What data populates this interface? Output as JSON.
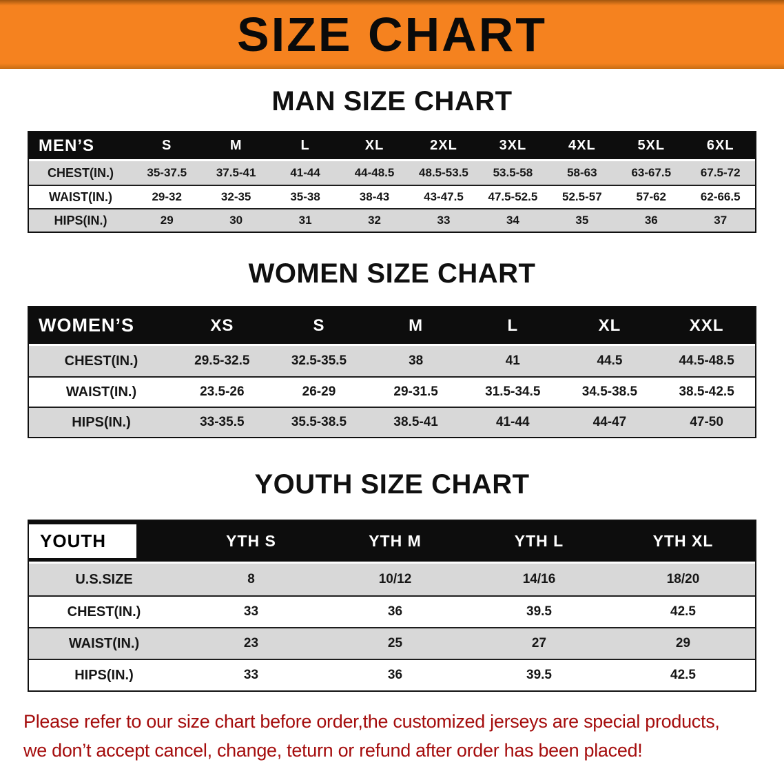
{
  "banner": {
    "title": "SIZE CHART"
  },
  "colors": {
    "banner_bg": "#F5821F",
    "table_header_bg": "#0D0D0D",
    "row_stripe": "#D8D8D8",
    "footer_text": "#A50D0D"
  },
  "sections": [
    {
      "id": "men",
      "heading": "MAN SIZE CHART",
      "table": {
        "header": [
          "MEN’S",
          "S",
          "M",
          "L",
          "XL",
          "2XL",
          "3XL",
          "4XL",
          "5XL",
          "6XL"
        ],
        "rows": [
          [
            "CHEST(IN.)",
            "35-37.5",
            "37.5-41",
            "41-44",
            "44-48.5",
            "48.5-53.5",
            "53.5-58",
            "58-63",
            "63-67.5",
            "67.5-72"
          ],
          [
            "WAIST(IN.)",
            "29-32",
            "32-35",
            "35-38",
            "38-43",
            "43-47.5",
            "47.5-52.5",
            "52.5-57",
            "57-62",
            "62-66.5"
          ],
          [
            "HIPS(IN.)",
            "29",
            "30",
            "31",
            "32",
            "33",
            "34",
            "35",
            "36",
            "37"
          ]
        ]
      }
    },
    {
      "id": "women",
      "heading": "WOMEN SIZE CHART",
      "table": {
        "header": [
          "WOMEN’S",
          "XS",
          "S",
          "M",
          "L",
          "XL",
          "XXL"
        ],
        "rows": [
          [
            "CHEST(IN.)",
            "29.5-32.5",
            "32.5-35.5",
            "38",
            "41",
            "44.5",
            "44.5-48.5"
          ],
          [
            "WAIST(IN.)",
            "23.5-26",
            "26-29",
            "29-31.5",
            "31.5-34.5",
            "34.5-38.5",
            "38.5-42.5"
          ],
          [
            "HIPS(IN.)",
            "33-35.5",
            "35.5-38.5",
            "38.5-41",
            "41-44",
            "44-47",
            "47-50"
          ]
        ]
      }
    },
    {
      "id": "youth",
      "heading": "YOUTH SIZE CHART",
      "table": {
        "header_label_inverted": true,
        "header": [
          "YOUTH",
          "YTH S",
          "YTH M",
          "YTH L",
          "YTH XL"
        ],
        "rows": [
          [
            "U.S.SIZE",
            "8",
            "10/12",
            "14/16",
            "18/20"
          ],
          [
            "CHEST(IN.)",
            "33",
            "36",
            "39.5",
            "42.5"
          ],
          [
            "WAIST(IN.)",
            "23",
            "25",
            "27",
            "29"
          ],
          [
            "HIPS(IN.)",
            "33",
            "36",
            "39.5",
            "42.5"
          ]
        ]
      }
    }
  ],
  "footer": {
    "lines": [
      "Please refer to our size chart before order,the customized jerseys are special products,",
      "we don’t accept cancel, change, teturn or refund after order has been placed!"
    ]
  }
}
